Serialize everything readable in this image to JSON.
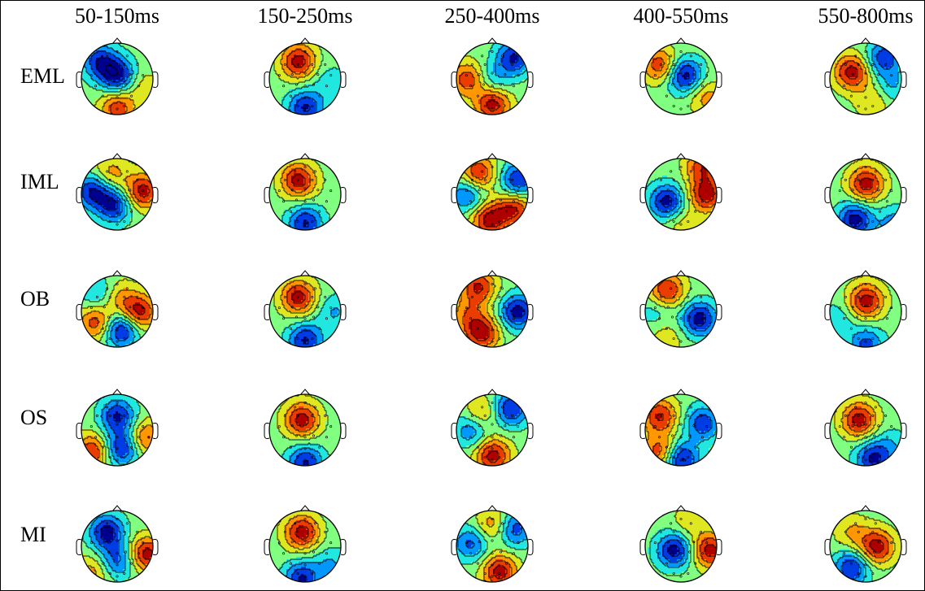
{
  "figure": {
    "time_windows": [
      "50-150ms",
      "150-250ms",
      "250-400ms",
      "400-550ms",
      "550-800ms"
    ],
    "conditions": [
      "EML",
      "IML",
      "OB",
      "OS",
      "MI"
    ],
    "colormap": [
      "#00008f",
      "#0050ff",
      "#00dfff",
      "#80ff80",
      "#ffdf00",
      "#ff5000",
      "#af0000"
    ],
    "maps": [
      {
        "condition": "EML",
        "window": "50-150ms",
        "blobs": [
          [
            0.5,
            0.45,
            -1.0
          ],
          [
            0.25,
            0.25,
            -0.8
          ],
          [
            0.5,
            0.9,
            0.8
          ],
          [
            0.85,
            0.6,
            0.3
          ]
        ]
      },
      {
        "condition": "EML",
        "window": "150-250ms",
        "blobs": [
          [
            0.4,
            0.25,
            1.0
          ],
          [
            0.5,
            0.9,
            -0.9
          ],
          [
            0.85,
            0.55,
            -0.3
          ]
        ]
      },
      {
        "condition": "EML",
        "window": "250-400ms",
        "blobs": [
          [
            0.5,
            0.85,
            1.0
          ],
          [
            0.15,
            0.5,
            0.8
          ],
          [
            0.8,
            0.2,
            -0.9
          ],
          [
            0.5,
            0.5,
            -0.4
          ]
        ]
      },
      {
        "condition": "EML",
        "window": "400-550ms",
        "blobs": [
          [
            0.55,
            0.45,
            -1.0
          ],
          [
            0.2,
            0.3,
            0.8
          ],
          [
            0.85,
            0.75,
            0.5
          ]
        ]
      },
      {
        "condition": "EML",
        "window": "550-800ms",
        "blobs": [
          [
            0.3,
            0.4,
            1.0
          ],
          [
            0.75,
            0.2,
            -0.8
          ],
          [
            0.6,
            0.8,
            0.4
          ],
          [
            0.85,
            0.6,
            -0.4
          ]
        ]
      },
      {
        "condition": "IML",
        "window": "50-150ms",
        "blobs": [
          [
            0.85,
            0.45,
            1.0
          ],
          [
            0.15,
            0.45,
            -0.9
          ],
          [
            0.45,
            0.65,
            -0.9
          ],
          [
            0.4,
            0.2,
            0.5
          ]
        ]
      },
      {
        "condition": "IML",
        "window": "150-250ms",
        "blobs": [
          [
            0.4,
            0.3,
            1.0
          ],
          [
            0.5,
            0.9,
            -0.9
          ]
        ]
      },
      {
        "condition": "IML",
        "window": "250-400ms",
        "blobs": [
          [
            0.3,
            0.2,
            0.9
          ],
          [
            0.85,
            0.3,
            -0.9
          ],
          [
            0.45,
            0.85,
            1.0
          ],
          [
            0.8,
            0.7,
            0.9
          ],
          [
            0.15,
            0.5,
            -0.7
          ]
        ]
      },
      {
        "condition": "IML",
        "window": "400-550ms",
        "blobs": [
          [
            0.3,
            0.6,
            -1.0
          ],
          [
            0.8,
            0.1,
            0.8
          ],
          [
            0.85,
            0.5,
            1.0
          ],
          [
            0.5,
            0.9,
            0.3
          ]
        ]
      },
      {
        "condition": "IML",
        "window": "550-800ms",
        "blobs": [
          [
            0.5,
            0.35,
            1.0
          ],
          [
            0.35,
            0.85,
            -1.0
          ],
          [
            0.9,
            0.9,
            -0.5
          ]
        ]
      },
      {
        "condition": "OB",
        "window": "50-150ms",
        "blobs": [
          [
            0.55,
            0.75,
            -1.0
          ],
          [
            0.2,
            0.65,
            0.8
          ],
          [
            0.8,
            0.5,
            1.0
          ],
          [
            0.5,
            0.3,
            0.5
          ],
          [
            0.25,
            0.25,
            -0.5
          ]
        ]
      },
      {
        "condition": "OB",
        "window": "150-250ms",
        "blobs": [
          [
            0.4,
            0.3,
            1.0
          ],
          [
            0.5,
            0.9,
            -0.9
          ],
          [
            0.9,
            0.5,
            -0.4
          ]
        ]
      },
      {
        "condition": "OB",
        "window": "250-400ms",
        "blobs": [
          [
            0.3,
            0.15,
            0.9
          ],
          [
            0.85,
            0.5,
            -1.0
          ],
          [
            0.35,
            0.8,
            1.0
          ],
          [
            0.15,
            0.55,
            0.5
          ]
        ]
      },
      {
        "condition": "OB",
        "window": "400-550ms",
        "blobs": [
          [
            0.75,
            0.6,
            -1.0
          ],
          [
            0.3,
            0.2,
            0.9
          ],
          [
            0.3,
            0.85,
            0.3
          ],
          [
            0.15,
            0.5,
            -0.3
          ]
        ]
      },
      {
        "condition": "OB",
        "window": "550-800ms",
        "blobs": [
          [
            0.5,
            0.35,
            1.0
          ],
          [
            0.5,
            0.95,
            -0.7
          ],
          [
            0.1,
            0.6,
            -0.3
          ]
        ]
      },
      {
        "condition": "OS",
        "window": "50-150ms",
        "blobs": [
          [
            0.5,
            0.3,
            -0.9
          ],
          [
            0.55,
            0.75,
            -0.9
          ],
          [
            0.15,
            0.8,
            0.9
          ],
          [
            0.9,
            0.6,
            0.7
          ]
        ]
      },
      {
        "condition": "OS",
        "window": "150-250ms",
        "blobs": [
          [
            0.45,
            0.35,
            1.0
          ],
          [
            0.5,
            0.95,
            -0.9
          ]
        ]
      },
      {
        "condition": "OS",
        "window": "250-400ms",
        "blobs": [
          [
            0.5,
            0.85,
            1.0
          ],
          [
            0.75,
            0.2,
            -0.9
          ],
          [
            0.2,
            0.5,
            -0.6
          ],
          [
            0.35,
            0.25,
            0.5
          ]
        ]
      },
      {
        "condition": "OS",
        "window": "400-550ms",
        "blobs": [
          [
            0.5,
            0.9,
            -1.0
          ],
          [
            0.8,
            0.4,
            -0.8
          ],
          [
            0.2,
            0.3,
            0.9
          ],
          [
            0.2,
            0.8,
            0.8
          ]
        ]
      },
      {
        "condition": "OS",
        "window": "550-800ms",
        "blobs": [
          [
            0.4,
            0.35,
            1.0
          ],
          [
            0.6,
            0.9,
            -0.9
          ],
          [
            0.85,
            0.7,
            -0.3
          ]
        ]
      },
      {
        "condition": "MI",
        "window": "50-150ms",
        "blobs": [
          [
            0.35,
            0.3,
            -1.0
          ],
          [
            0.5,
            0.7,
            -0.7
          ],
          [
            0.9,
            0.6,
            1.0
          ],
          [
            0.15,
            0.85,
            0.5
          ]
        ]
      },
      {
        "condition": "MI",
        "window": "150-250ms",
        "blobs": [
          [
            0.45,
            0.3,
            1.0
          ],
          [
            0.45,
            0.95,
            -0.9
          ],
          [
            0.85,
            0.75,
            -0.4
          ]
        ]
      },
      {
        "condition": "MI",
        "window": "250-400ms",
        "blobs": [
          [
            0.6,
            0.85,
            1.0
          ],
          [
            0.8,
            0.25,
            -0.8
          ],
          [
            0.2,
            0.45,
            -0.7
          ],
          [
            0.5,
            0.2,
            0.6
          ]
        ]
      },
      {
        "condition": "MI",
        "window": "400-550ms",
        "blobs": [
          [
            0.4,
            0.55,
            -1.0
          ],
          [
            0.9,
            0.55,
            1.0
          ],
          [
            0.6,
            0.15,
            0.3
          ]
        ]
      },
      {
        "condition": "MI",
        "window": "550-800ms",
        "blobs": [
          [
            0.65,
            0.5,
            1.0
          ],
          [
            0.3,
            0.8,
            -0.9
          ],
          [
            0.3,
            0.3,
            0.4
          ]
        ]
      }
    ]
  }
}
